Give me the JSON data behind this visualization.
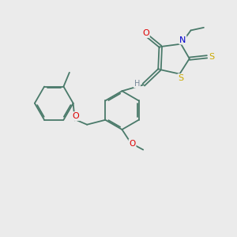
{
  "background_color": "#ebebeb",
  "bond_color": "#4a7a6a",
  "atom_colors": {
    "O": "#dd0000",
    "N": "#0000cc",
    "S": "#ccaa00",
    "H": "#778899",
    "C": "#4a7a6a"
  },
  "figsize": [
    3.0,
    3.0
  ],
  "dpi": 100
}
